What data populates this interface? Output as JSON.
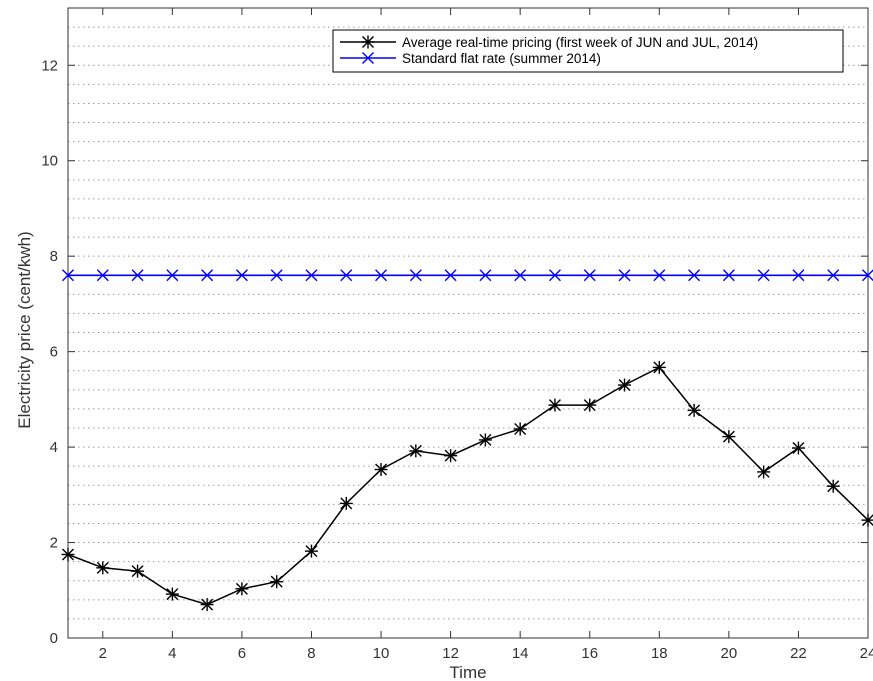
{
  "chart_data": {
    "type": "line",
    "xlabel": "Time",
    "ylabel": "Electricity price (cent/kwh)",
    "xlim": [
      1,
      24
    ],
    "ylim": [
      0,
      13.2
    ],
    "xticks": [
      2,
      4,
      6,
      8,
      10,
      12,
      14,
      16,
      18,
      20,
      22,
      24
    ],
    "yticks": [
      0,
      2,
      4,
      6,
      8,
      10,
      12
    ],
    "grid": "dotted, horizontal minor lines",
    "legend_position": "top-right",
    "x": [
      1,
      2,
      3,
      4,
      5,
      6,
      7,
      8,
      9,
      10,
      11,
      12,
      13,
      14,
      15,
      16,
      17,
      18,
      19,
      20,
      21,
      22,
      23,
      24
    ],
    "series": [
      {
        "name": "Average real-time pricing (first week of JUN and JUL, 2014)",
        "color": "#000000",
        "marker": "asterisk",
        "values": [
          1.75,
          1.47,
          1.4,
          0.92,
          0.7,
          1.03,
          1.18,
          1.82,
          2.82,
          3.53,
          3.92,
          3.82,
          4.15,
          4.38,
          4.88,
          4.88,
          5.3,
          5.67,
          4.77,
          4.22,
          3.48,
          3.98,
          3.18,
          2.47
        ]
      },
      {
        "name": "Standard flat rate (summer 2014)",
        "color": "#0000ff",
        "marker": "x",
        "values": [
          7.6,
          7.6,
          7.6,
          7.6,
          7.6,
          7.6,
          7.6,
          7.6,
          7.6,
          7.6,
          7.6,
          7.6,
          7.6,
          7.6,
          7.6,
          7.6,
          7.6,
          7.6,
          7.6,
          7.6,
          7.6,
          7.6,
          7.6,
          7.6
        ]
      }
    ]
  }
}
